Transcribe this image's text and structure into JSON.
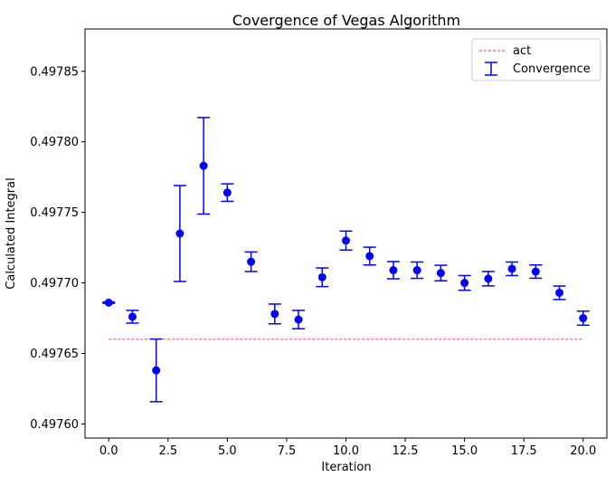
{
  "chart_data": {
    "type": "scatter",
    "title": "Covergence of Vegas Algorithm",
    "xlabel": "Iteration",
    "ylabel": "Calculated Integral",
    "xlim": [
      -1.0,
      21.0
    ],
    "ylim": [
      0.49759,
      0.49788
    ],
    "xticks": [
      0.0,
      2.5,
      5.0,
      7.5,
      10.0,
      12.5,
      15.0,
      17.5,
      20.0
    ],
    "xtick_labels": [
      "0.0",
      "2.5",
      "5.0",
      "7.5",
      "10.0",
      "12.5",
      "15.0",
      "17.5",
      "20.0"
    ],
    "yticks": [
      0.4976,
      0.49765,
      0.4977,
      0.49775,
      0.4978,
      0.49785
    ],
    "ytick_labels": [
      "0.49760",
      "0.49765",
      "0.49770",
      "0.49775",
      "0.49780",
      "0.49785"
    ],
    "grid": false,
    "legend": {
      "placement": "top-right",
      "entries": [
        "act",
        "Convergence"
      ]
    },
    "reference_line": {
      "name": "act",
      "y": 0.49766,
      "x_range": [
        0,
        20
      ],
      "color": "#ff0000",
      "style": "dashed"
    },
    "series": [
      {
        "name": "Convergence",
        "color": "#0000ff",
        "x": [
          0,
          1,
          2,
          3,
          4,
          5,
          6,
          7,
          8,
          9,
          10,
          11,
          12,
          13,
          14,
          15,
          16,
          17,
          18,
          19,
          20
        ],
        "y": [
          0.497686,
          0.497676,
          0.497638,
          0.497735,
          0.497783,
          0.497764,
          0.497715,
          0.497678,
          0.497674,
          0.497704,
          0.49773,
          0.497719,
          0.497709,
          0.497709,
          0.497707,
          0.4977,
          0.497703,
          0.49771,
          0.497708,
          0.497693,
          0.497675
        ],
        "err": [
          5e-07,
          4.5e-06,
          2.22e-05,
          3.4e-05,
          3.42e-05,
          6.2e-06,
          6.9e-06,
          7e-06,
          6.5e-06,
          6.6e-06,
          6.7e-06,
          6.3e-06,
          6.1e-06,
          5.8e-06,
          5.5e-06,
          5.2e-06,
          5.1e-06,
          4.8e-06,
          4.7e-06,
          4.8e-06,
          5e-06
        ]
      }
    ]
  }
}
